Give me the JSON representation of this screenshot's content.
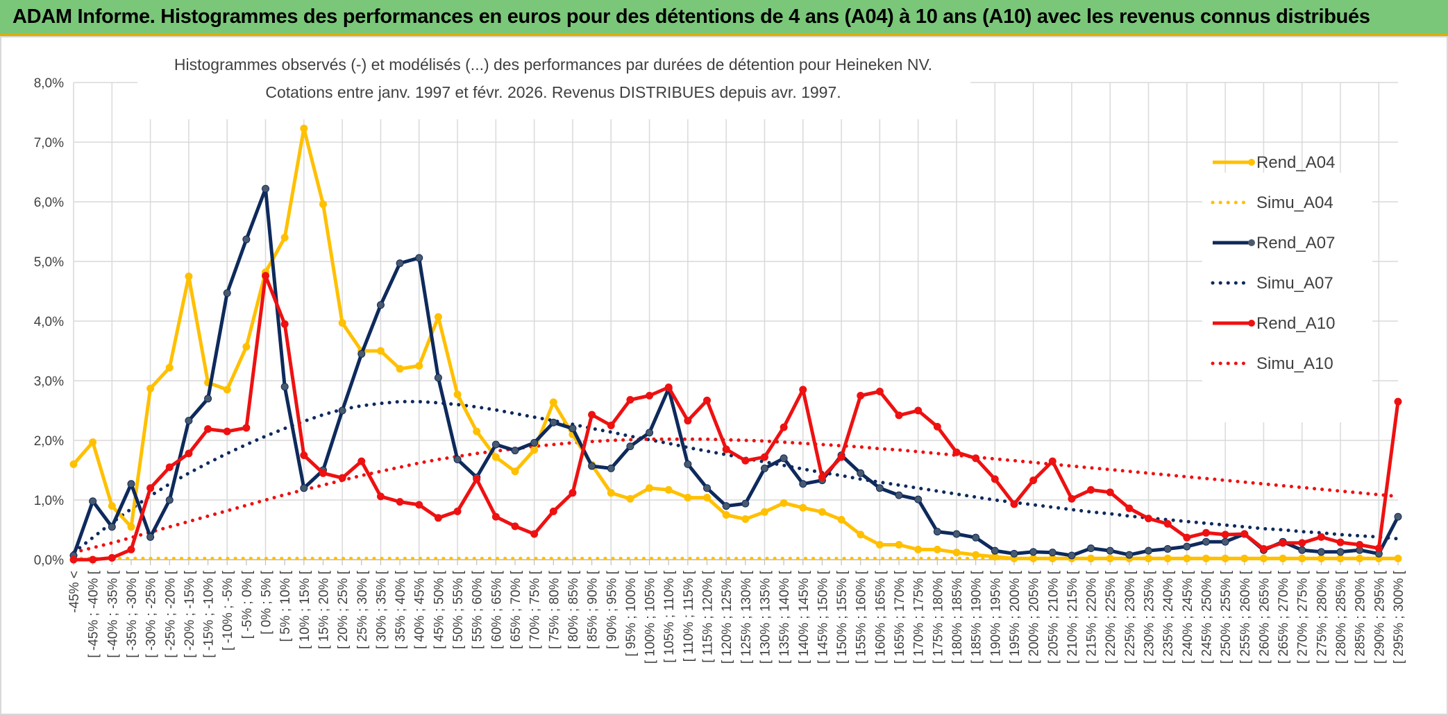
{
  "banner_title": "ADAM Informe. Histogrammes des performances en euros pour des détentions de 4 ans (A04) à 10 ans (A10) avec les revenus connus distribués",
  "colors": {
    "banner_bg": "#7ac77a",
    "banner_accent": "#e0b000",
    "A04": "#ffc000",
    "A07": "#0e2a5c",
    "A07_marker": "#4a5a6e",
    "A10": "#ee1111"
  },
  "chart_data": {
    "type": "line",
    "title": "Histogrammes observés (-) et modélisés (...) des performances par durées de détention pour Heineken NV.",
    "subtitle": "Cotations entre janv. 1997 et févr. 2026. Revenus DISTRIBUES depuis avr. 1997.",
    "xlabel": "",
    "ylabel": "",
    "ylim": [
      0,
      8
    ],
    "y_ticks": [
      "0,0%",
      "1,0%",
      "2,0%",
      "3,0%",
      "4,0%",
      "5,0%",
      "6,0%",
      "7,0%",
      "8,0%"
    ],
    "grid": true,
    "legend_position": "right",
    "categories": [
      "-45% <",
      "[ -45% ; -40% [",
      "[ -40% ; -35% [",
      "[ -35% ; -30% [",
      "[ -30% ; -25% [",
      "[ -25% ; -20% [",
      "[ -20% ; -15% [",
      "[ -15% ; -10% [",
      "[ -10% ; -5% [",
      "[ -5% ; 0% [",
      "[ 0% ; 5% [",
      "[ 5% ; 10% [",
      "[ 10% ; 15% [",
      "[ 15% ; 20% [",
      "[ 20% ; 25% [",
      "[ 25% ; 30% [",
      "[ 30% ; 35% [",
      "[ 35% ; 40% [",
      "[ 40% ; 45% [",
      "[ 45% ; 50% [",
      "[ 50% ; 55% [",
      "[ 55% ; 60% [",
      "[ 60% ; 65% [",
      "[ 65% ; 70% [",
      "[ 70% ; 75% [",
      "[ 75% ; 80% [",
      "[ 80% ; 85% [",
      "[ 85% ; 90% [",
      "[ 90% ; 95% [",
      "[ 95% ; 100% [",
      "[ 100% ; 105% [",
      "[ 105% ; 110% [",
      "[ 110% ; 115% [",
      "[ 115% ; 120% [",
      "[ 120% ; 125% [",
      "[ 125% ; 130% [",
      "[ 130% ; 135% [",
      "[ 135% ; 140% [",
      "[ 140% ; 145% [",
      "[ 145% ; 150% [",
      "[ 150% ; 155% [",
      "[ 155% ; 160% [",
      "[ 160% ; 165% [",
      "[ 165% ; 170% [",
      "[ 170% ; 175% [",
      "[ 175% ; 180% [",
      "[ 180% ; 185% [",
      "[ 185% ; 190% [",
      "[ 190% ; 195% [",
      "[ 195% ; 200% [",
      "[ 200% ; 205% [",
      "[ 205% ; 210% [",
      "[ 210% ; 215% [",
      "[ 215% ; 220% [",
      "[ 220% ; 225% [",
      "[ 225% ; 230% [",
      "[ 230% ; 235% [",
      "[ 235% ; 240% [",
      "[ 240% ; 245% [",
      "[ 245% ; 250% [",
      "[ 250% ; 255% [",
      "[ 255% ; 260% [",
      "[ 260% ; 265% [",
      "[ 265% ; 270% [",
      "[ 270% ; 275% [",
      "[ 275% ; 280% [",
      "[ 280% ; 285% [",
      "[ 285% ; 290% [",
      "[ 290% ; 295% [",
      "[ 295% ; 300% ["
    ],
    "series": [
      {
        "name": "Rend_A04",
        "style": "solid",
        "color": "#ffc000",
        "values": [
          1.6,
          1.97,
          0.9,
          0.55,
          2.87,
          3.22,
          4.75,
          2.97,
          2.85,
          3.57,
          4.82,
          5.4,
          7.23,
          5.96,
          3.97,
          3.5,
          3.5,
          3.2,
          3.25,
          4.07,
          2.77,
          2.15,
          1.72,
          1.48,
          1.84,
          2.64,
          2.1,
          1.59,
          1.12,
          1.02,
          1.2,
          1.17,
          1.04,
          1.04,
          0.75,
          0.68,
          0.8,
          0.95,
          0.87,
          0.8,
          0.67,
          0.42,
          0.25,
          0.25,
          0.17,
          0.17,
          0.12,
          0.08,
          0.05,
          0.02,
          0.02,
          0.02,
          0.02,
          0.02,
          0.02,
          0.02,
          0.02,
          0.02,
          0.02,
          0.02,
          0.02,
          0.02,
          0.02,
          0.02,
          0.02,
          0.02,
          0.02,
          0.02,
          0.02,
          0.02
        ]
      },
      {
        "name": "Simu_A04",
        "style": "dotted",
        "color": "#ffc000",
        "values": [
          0.02,
          0.02,
          0.02,
          0.02,
          0.02,
          0.02,
          0.02,
          0.02,
          0.02,
          0.02,
          0.02,
          0.02,
          0.02,
          0.02,
          0.02,
          0.02,
          0.02,
          0.02,
          0.02,
          0.02,
          0.02,
          0.02,
          0.02,
          0.02,
          0.02,
          0.02,
          0.02,
          0.02,
          0.02,
          0.02,
          0.02,
          0.02,
          0.02,
          0.02,
          0.02,
          0.02,
          0.02,
          0.02,
          0.02,
          0.02,
          0.02,
          0.02,
          0.02,
          0.02,
          0.02,
          0.02,
          0.02,
          0.02,
          0.02,
          0.02,
          0.02,
          0.02,
          0.02,
          0.02,
          0.02,
          0.02,
          0.02,
          0.02,
          0.02,
          0.02,
          0.02,
          0.02,
          0.02,
          0.02,
          0.02,
          0.02,
          0.02,
          0.02,
          0.02,
          0.02
        ]
      },
      {
        "name": "Rend_A07",
        "style": "solid",
        "color": "#0e2a5c",
        "values": [
          0.07,
          0.98,
          0.55,
          1.27,
          0.38,
          1.0,
          2.33,
          2.7,
          4.47,
          5.37,
          6.22,
          2.9,
          1.2,
          1.5,
          2.5,
          3.45,
          4.27,
          4.97,
          5.06,
          3.05,
          1.68,
          1.38,
          1.93,
          1.83,
          1.96,
          2.3,
          2.2,
          1.57,
          1.53,
          1.9,
          2.13,
          2.87,
          1.6,
          1.2,
          0.9,
          0.94,
          1.53,
          1.7,
          1.27,
          1.33,
          1.75,
          1.45,
          1.2,
          1.08,
          1.01,
          0.47,
          0.43,
          0.37,
          0.15,
          0.1,
          0.13,
          0.12,
          0.07,
          0.19,
          0.15,
          0.08,
          0.15,
          0.18,
          0.22,
          0.3,
          0.3,
          0.43,
          0.16,
          0.3,
          0.16,
          0.13,
          0.13,
          0.16,
          0.1,
          0.72
        ]
      },
      {
        "name": "Simu_A07",
        "style": "dotted",
        "color": "#0e2a5c",
        "values": [
          0.12,
          0.37,
          0.62,
          0.85,
          1.07,
          1.27,
          1.45,
          1.62,
          1.78,
          1.93,
          2.07,
          2.2,
          2.32,
          2.43,
          2.52,
          2.58,
          2.62,
          2.65,
          2.65,
          2.63,
          2.6,
          2.56,
          2.51,
          2.45,
          2.39,
          2.33,
          2.27,
          2.2,
          2.14,
          2.07,
          2.01,
          1.95,
          1.88,
          1.82,
          1.76,
          1.7,
          1.64,
          1.58,
          1.52,
          1.46,
          1.41,
          1.35,
          1.3,
          1.25,
          1.2,
          1.15,
          1.1,
          1.05,
          1.0,
          0.96,
          0.92,
          0.88,
          0.84,
          0.8,
          0.77,
          0.73,
          0.7,
          0.67,
          0.64,
          0.61,
          0.58,
          0.55,
          0.52,
          0.5,
          0.47,
          0.45,
          0.42,
          0.4,
          0.38,
          0.35
        ]
      },
      {
        "name": "Rend_A10",
        "style": "solid",
        "color": "#ee1111",
        "values": [
          0.0,
          0.0,
          0.03,
          0.17,
          1.2,
          1.55,
          1.78,
          2.19,
          2.15,
          2.21,
          4.76,
          3.95,
          1.75,
          1.45,
          1.37,
          1.65,
          1.06,
          0.97,
          0.92,
          0.7,
          0.81,
          1.35,
          0.72,
          0.56,
          0.43,
          0.81,
          1.12,
          2.43,
          2.25,
          2.68,
          2.75,
          2.89,
          2.33,
          2.67,
          1.85,
          1.66,
          1.72,
          2.22,
          2.85,
          1.38,
          1.72,
          2.75,
          2.82,
          2.42,
          2.5,
          2.23,
          1.8,
          1.7,
          1.35,
          0.93,
          1.33,
          1.65,
          1.02,
          1.17,
          1.13,
          0.86,
          0.69,
          0.6,
          0.37,
          0.45,
          0.42,
          0.43,
          0.18,
          0.28,
          0.28,
          0.38,
          0.29,
          0.25,
          0.19,
          2.65
        ]
      },
      {
        "name": "Simu_A10",
        "style": "dotted",
        "color": "#ee1111",
        "values": [
          0.12,
          0.2,
          0.28,
          0.37,
          0.46,
          0.55,
          0.64,
          0.73,
          0.82,
          0.91,
          1.0,
          1.09,
          1.17,
          1.25,
          1.33,
          1.41,
          1.48,
          1.55,
          1.62,
          1.68,
          1.73,
          1.78,
          1.82,
          1.86,
          1.9,
          1.93,
          1.96,
          1.98,
          2.0,
          2.01,
          2.02,
          2.02,
          2.02,
          2.02,
          2.01,
          2.0,
          1.99,
          1.97,
          1.95,
          1.93,
          1.91,
          1.89,
          1.86,
          1.84,
          1.81,
          1.78,
          1.75,
          1.72,
          1.69,
          1.66,
          1.63,
          1.6,
          1.57,
          1.54,
          1.51,
          1.48,
          1.45,
          1.42,
          1.39,
          1.36,
          1.33,
          1.3,
          1.27,
          1.24,
          1.21,
          1.18,
          1.15,
          1.12,
          1.09,
          1.06
        ]
      }
    ]
  }
}
